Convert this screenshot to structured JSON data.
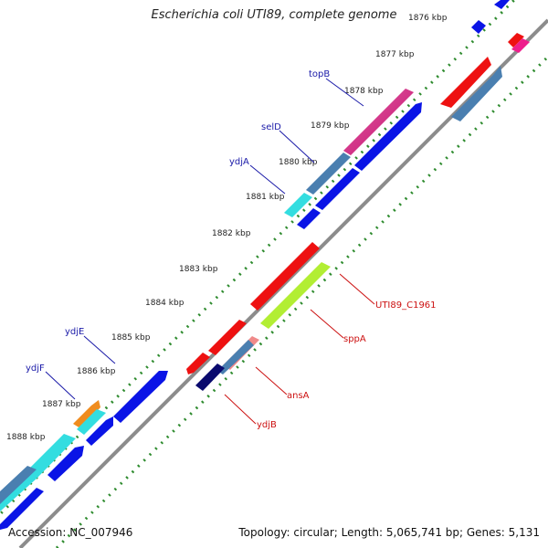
{
  "title": "Escherichia coli UTI89, complete genome",
  "footer": {
    "accession": "Accession: NC_007946",
    "topology": "Topology: circular; Length: 5,065,741 bp; Genes: 5,131"
  },
  "ticks": [
    "1876 kbp",
    "1877 kbp",
    "1878 kbp",
    "1879 kbp",
    "1880 kbp",
    "1881 kbp",
    "1882 kbp",
    "1883 kbp",
    "1884 kbp",
    "1885 kbp",
    "1886 kbp",
    "1887 kbp",
    "1888 kbp"
  ],
  "gene_labels_outer": [
    "topB",
    "selD",
    "ydjA",
    "ydjE",
    "ydjF"
  ],
  "gene_labels_inner": [
    "UTI89_C1961",
    "sppA",
    "ansA",
    "ydjB"
  ],
  "colors": {
    "forward_label": "#1a1aa8",
    "reverse_label": "#cc1111",
    "backbone": "#8c8c8c",
    "dots": "#2e8b2e",
    "blue": "#0a14e6",
    "red": "#ee1111",
    "steel": "#4a7fb0",
    "pink": "#ee1e8c",
    "cyan": "#33dde0",
    "lime": "#b2ee33",
    "salmon": "#f08a8a",
    "navy": "#0a0a6e",
    "orange": "#f08c1e"
  }
}
